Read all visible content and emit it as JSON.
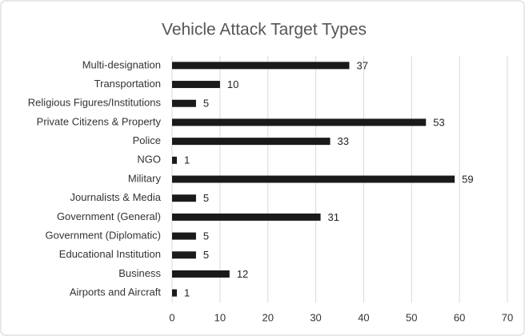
{
  "chart_data": {
    "type": "barh",
    "title": "Vehicle Attack Target Types",
    "categories": [
      "Multi-designation",
      "Transportation",
      "Religious Figures/Institutions",
      "Private Citizens & Property",
      "Police",
      "NGO",
      "Military",
      "Journalists & Media",
      "Government (General)",
      "Government (Diplomatic)",
      "Educational Institution",
      "Business",
      "Airports and Aircraft"
    ],
    "values": [
      37,
      10,
      5,
      53,
      33,
      1,
      59,
      5,
      31,
      5,
      5,
      12,
      1
    ],
    "color": "#1a1a1a",
    "xlim": [
      0,
      70
    ],
    "xticks": [
      0,
      10,
      20,
      30,
      40,
      50,
      60,
      70
    ],
    "grid": true
  }
}
